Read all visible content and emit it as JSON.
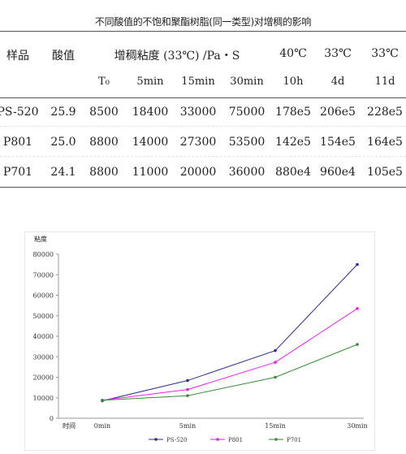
{
  "table": {
    "title": "不同酸值的不饱和聚酯树脂(同一类型)对增稠的影响",
    "headers": {
      "sample": "样品",
      "acid_value": "酸值",
      "thickening": "增稠粘度 (33℃) /Pa・S",
      "col_40c": "40℃",
      "col_33c_a": "33℃",
      "col_33c_b": "33℃"
    },
    "subheaders": [
      "T₀",
      "5min",
      "15min",
      "30min",
      "10h",
      "4d",
      "11d"
    ],
    "rows": [
      {
        "sample": "PS-520",
        "acid": "25.9",
        "t0": "8500",
        "m5": "18400",
        "m15": "33000",
        "m30": "75000",
        "h10": "178e5",
        "d4": "206e5",
        "d11": "228e5"
      },
      {
        "sample": "P801",
        "acid": "25.0",
        "t0": "8800",
        "m5": "14000",
        "m15": "27300",
        "m30": "53500",
        "h10": "142e5",
        "d4": "154e5",
        "d11": "164e5"
      },
      {
        "sample": "P701",
        "acid": "24.1",
        "t0": "8800",
        "m5": "11000",
        "m15": "20000",
        "m30": "36000",
        "h10": "880e4",
        "d4": "960e4",
        "d11": "105e5"
      }
    ]
  },
  "chart_data": {
    "type": "line",
    "ylabel": "粘度",
    "xlabel": "时间",
    "categories": [
      "0min",
      "5min",
      "15min",
      "30min"
    ],
    "ylim": [
      0,
      80000
    ],
    "yticks": [
      0,
      10000,
      20000,
      30000,
      40000,
      50000,
      60000,
      70000,
      80000
    ],
    "legend_position": "bottom",
    "series": [
      {
        "name": "PS-520",
        "color": "#2e2e8a",
        "values": [
          8500,
          18400,
          33000,
          75000
        ]
      },
      {
        "name": "P801",
        "color": "#ee1ee6",
        "values": [
          8800,
          14000,
          27300,
          53500
        ]
      },
      {
        "name": "P701",
        "color": "#3a8a3a",
        "values": [
          8800,
          11000,
          20000,
          36000
        ]
      }
    ]
  }
}
